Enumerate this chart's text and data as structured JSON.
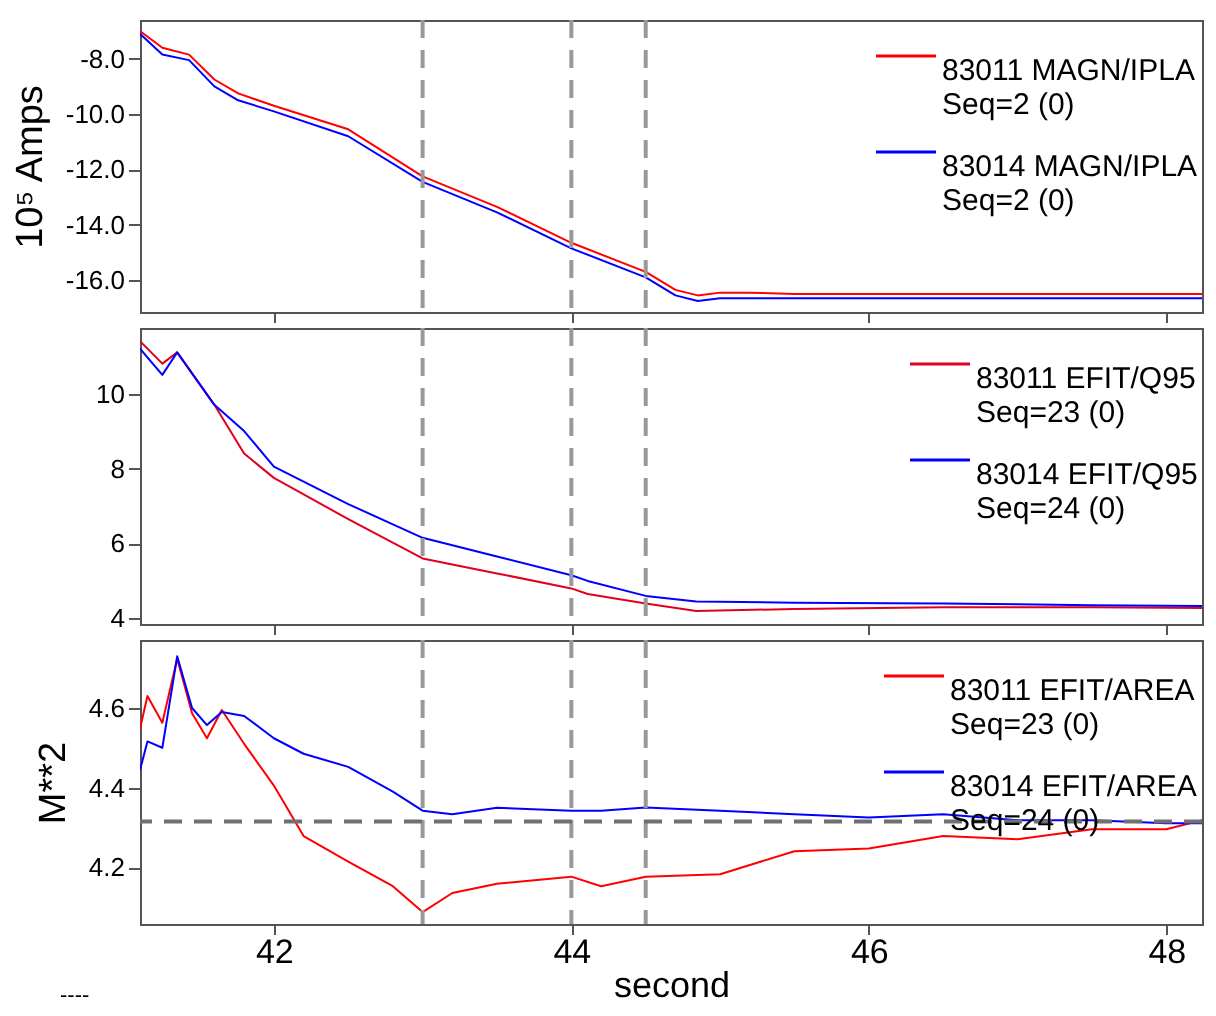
{
  "chart_data": [
    {
      "type": "line",
      "ylabel": "10⁵ Amps",
      "xlim": [
        41.1,
        48.24
      ],
      "xticks": [
        42,
        44,
        46,
        48
      ],
      "ylim": [
        -17.15,
        -6.6
      ],
      "yticks": [
        {
          "value": -8,
          "label": "-8.0"
        },
        {
          "value": -10,
          "label": "-10.0"
        },
        {
          "value": -12,
          "label": "-12.0"
        },
        {
          "value": -14,
          "label": "-14.0"
        },
        {
          "value": -16,
          "label": "-16.0"
        }
      ],
      "tick_labels": "y",
      "grid": false,
      "legend": "top right",
      "series": [
        {
          "name": "83011 MAGN/IPLA\nSeq=2 (0)",
          "color": "#ff0000",
          "x": [
            41.1,
            41.25,
            41.43,
            41.6,
            41.76,
            42.0,
            42.5,
            43.0,
            43.5,
            44.0,
            44.5,
            44.7,
            44.85,
            45.0,
            45.2,
            45.5,
            46.0,
            46.5,
            47.0,
            47.5,
            48.0,
            48.24
          ],
          "values": [
            -7.0,
            -7.6,
            -7.85,
            -8.75,
            -9.25,
            -9.7,
            -10.55,
            -12.25,
            -13.35,
            -14.65,
            -15.7,
            -16.35,
            -16.55,
            -16.45,
            -16.45,
            -16.5,
            -16.5,
            -16.5,
            -16.5,
            -16.5,
            -16.5,
            -16.5
          ]
        },
        {
          "name": "83014 MAGN/IPLA\nSeq=2 (0)",
          "color": "#0000ff",
          "x": [
            41.1,
            41.25,
            41.43,
            41.6,
            41.76,
            42.0,
            42.5,
            43.0,
            43.5,
            44.0,
            44.5,
            44.7,
            44.85,
            45.0,
            45.2,
            45.5,
            46.0,
            46.5,
            47.0,
            47.5,
            48.0,
            48.24
          ],
          "values": [
            -7.1,
            -7.85,
            -8.05,
            -9.0,
            -9.5,
            -9.9,
            -10.8,
            -12.45,
            -13.55,
            -14.85,
            -15.9,
            -16.55,
            -16.75,
            -16.65,
            -16.65,
            -16.65,
            -16.65,
            -16.65,
            -16.65,
            -16.65,
            -16.65,
            -16.65
          ]
        }
      ],
      "ref_lines": [
        {
          "axis": "x",
          "value": 43,
          "color": "#999999",
          "line_style": "dashed"
        },
        {
          "axis": "x",
          "value": 44,
          "color": "#999999",
          "line_style": "dashed"
        },
        {
          "axis": "x",
          "value": 44.5,
          "color": "#999999",
          "line_style": "dashed"
        }
      ]
    },
    {
      "type": "line",
      "xlim": [
        41.1,
        48.24
      ],
      "xticks": [
        42,
        44,
        46,
        48
      ],
      "ylim": [
        3.85,
        11.75
      ],
      "yticks": [
        4,
        6,
        8,
        10
      ],
      "tick_labels": "y",
      "grid": false,
      "legend": "top right",
      "series": [
        {
          "name": "83011 EFIT/Q95\nSeq=23 (0)",
          "color": "#e00020",
          "x": [
            41.1,
            41.25,
            41.35,
            41.6,
            41.8,
            42.0,
            42.5,
            43.0,
            43.5,
            44.0,
            44.11,
            44.5,
            44.84,
            45.5,
            46.5,
            47.5,
            48.24
          ],
          "values": [
            11.4,
            10.8,
            11.1,
            9.7,
            8.4,
            7.75,
            6.65,
            5.6,
            5.2,
            4.8,
            4.65,
            4.4,
            4.2,
            4.25,
            4.3,
            4.3,
            4.28
          ]
        },
        {
          "name": "83014 EFIT/Q95\nSeq=24 (0)",
          "color": "#0000ff",
          "x": [
            41.1,
            41.25,
            41.35,
            41.6,
            41.8,
            42.0,
            42.5,
            43.0,
            43.5,
            44.0,
            44.11,
            44.5,
            44.84,
            45.5,
            46.5,
            47.5,
            48.24
          ],
          "values": [
            11.2,
            10.5,
            11.1,
            9.7,
            9.0,
            8.05,
            7.05,
            6.15,
            5.65,
            5.15,
            5.0,
            4.6,
            4.45,
            4.42,
            4.4,
            4.35,
            4.33
          ]
        }
      ],
      "ref_lines": [
        {
          "axis": "x",
          "value": 43,
          "color": "#999999",
          "line_style": "dashed"
        },
        {
          "axis": "x",
          "value": 44,
          "color": "#999999",
          "line_style": "dashed"
        },
        {
          "axis": "x",
          "value": 44.5,
          "color": "#999999",
          "line_style": "dashed"
        }
      ]
    },
    {
      "type": "line",
      "xlabel": "second",
      "ylabel": "M**2",
      "xlim": [
        41.1,
        48.24
      ],
      "xticks": [
        42,
        44,
        46,
        48
      ],
      "ylim": [
        4.057,
        4.771
      ],
      "yticks": [
        4.2,
        4.4,
        4.6
      ],
      "grid": false,
      "legend": "top right",
      "annotations": [
        "----"
      ],
      "series": [
        {
          "name": "83011 EFIT/AREA\nSeq=23 (0)",
          "color": "#ff0000",
          "x": [
            41.1,
            41.15,
            41.25,
            41.35,
            41.45,
            41.55,
            41.65,
            41.8,
            42.0,
            42.2,
            42.5,
            42.8,
            43.0,
            43.2,
            43.5,
            44.0,
            44.2,
            44.5,
            45.0,
            45.5,
            46.0,
            46.5,
            47.0,
            47.5,
            48.0,
            48.24
          ],
          "values": [
            4.548,
            4.63,
            4.563,
            4.724,
            4.587,
            4.524,
            4.595,
            4.51,
            4.405,
            4.278,
            4.214,
            4.152,
            4.087,
            4.135,
            4.158,
            4.176,
            4.152,
            4.176,
            4.182,
            4.24,
            4.247,
            4.278,
            4.27,
            4.295,
            4.295,
            4.318
          ]
        },
        {
          "name": "83014 EFIT/AREA\nSeq=24 (0)",
          "color": "#0000ff",
          "x": [
            41.1,
            41.15,
            41.25,
            41.35,
            41.45,
            41.55,
            41.65,
            41.8,
            42.0,
            42.2,
            42.5,
            42.8,
            43.0,
            43.2,
            43.5,
            44.0,
            44.2,
            44.5,
            45.0,
            45.5,
            46.0,
            46.5,
            47.0,
            47.5,
            48.0,
            48.24
          ],
          "values": [
            4.444,
            4.516,
            4.5,
            4.73,
            4.6,
            4.557,
            4.59,
            4.58,
            4.524,
            4.485,
            4.452,
            4.39,
            4.342,
            4.333,
            4.349,
            4.342,
            4.342,
            4.35,
            4.342,
            4.333,
            4.325,
            4.333,
            4.318,
            4.318,
            4.31,
            4.31
          ]
        }
      ],
      "ref_lines": [
        {
          "axis": "x",
          "value": 43,
          "color": "#999999",
          "line_style": "dashed"
        },
        {
          "axis": "x",
          "value": 44,
          "color": "#999999",
          "line_style": "dashed"
        },
        {
          "axis": "x",
          "value": 44.5,
          "color": "#999999",
          "line_style": "dashed"
        },
        {
          "axis": "y",
          "value": 4.315,
          "color": "#707070",
          "line_style": "dashed"
        }
      ]
    }
  ]
}
